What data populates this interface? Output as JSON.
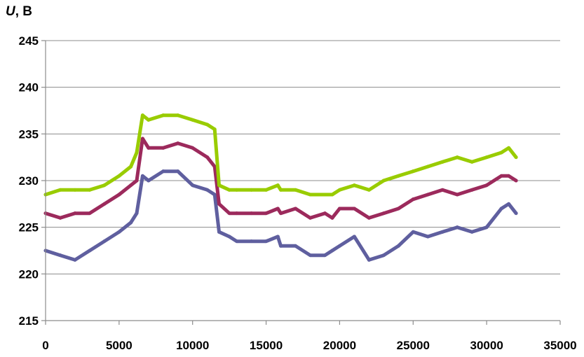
{
  "chart_data": {
    "type": "line",
    "ylabel_var": "U",
    "ylabel_unit": ", В",
    "xlim": [
      0,
      35000
    ],
    "ylim": [
      215,
      245
    ],
    "xticks": [
      0,
      5000,
      10000,
      15000,
      20000,
      25000,
      30000,
      35000
    ],
    "yticks": [
      215,
      220,
      225,
      230,
      235,
      240,
      245
    ],
    "grid": "horizontal",
    "legend": "none",
    "series": [
      {
        "color": "#5f5f9f",
        "x": [
          0,
          1000,
          2000,
          3000,
          4000,
          5000,
          5800,
          6200,
          6600,
          7000,
          8000,
          9000,
          10000,
          11000,
          11500,
          11800,
          12500,
          13000,
          14000,
          15000,
          15800,
          16000,
          17000,
          18000,
          19000,
          19500,
          20000,
          21000,
          22000,
          23000,
          24000,
          25000,
          26000,
          27000,
          28000,
          29000,
          30000,
          31000,
          31500,
          32000
        ],
        "values": [
          222.5,
          222.0,
          221.5,
          222.5,
          223.5,
          224.5,
          225.5,
          226.5,
          230.5,
          230.0,
          231.0,
          231.0,
          229.5,
          229.0,
          228.5,
          224.5,
          224.0,
          223.5,
          223.5,
          223.5,
          224.0,
          223.0,
          223.0,
          222.0,
          222.0,
          222.5,
          223.0,
          224.0,
          221.5,
          222.0,
          223.0,
          224.5,
          224.0,
          224.5,
          225.0,
          224.5,
          225.0,
          227.0,
          227.5,
          226.5
        ]
      },
      {
        "color": "#9c2a5c",
        "x": [
          0,
          1000,
          2000,
          3000,
          4000,
          5000,
          5800,
          6200,
          6600,
          7000,
          8000,
          9000,
          10000,
          11000,
          11500,
          11800,
          12500,
          13000,
          14000,
          15000,
          15800,
          16000,
          17000,
          18000,
          19000,
          19500,
          20000,
          21000,
          22000,
          23000,
          24000,
          25000,
          26000,
          27000,
          28000,
          29000,
          30000,
          31000,
          31500,
          32000
        ],
        "values": [
          226.5,
          226.0,
          226.5,
          226.5,
          227.5,
          228.5,
          229.5,
          230.0,
          234.5,
          233.5,
          233.5,
          234.0,
          233.5,
          232.5,
          231.5,
          227.5,
          226.5,
          226.5,
          226.5,
          226.5,
          227.0,
          226.5,
          227.0,
          226.0,
          226.5,
          226.0,
          227.0,
          227.0,
          226.0,
          226.5,
          227.0,
          228.0,
          228.5,
          229.0,
          228.5,
          229.0,
          229.5,
          230.5,
          230.5,
          230.0
        ]
      },
      {
        "color": "#99cc00",
        "x": [
          0,
          1000,
          2000,
          3000,
          4000,
          5000,
          5800,
          6200,
          6600,
          7000,
          8000,
          9000,
          10000,
          11000,
          11500,
          11800,
          12500,
          13000,
          14000,
          15000,
          15800,
          16000,
          17000,
          18000,
          19000,
          19500,
          20000,
          21000,
          22000,
          23000,
          24000,
          25000,
          26000,
          27000,
          28000,
          29000,
          30000,
          31000,
          31500,
          32000
        ],
        "values": [
          228.5,
          229.0,
          229.0,
          229.0,
          229.5,
          230.5,
          231.5,
          233.0,
          237.0,
          236.5,
          237.0,
          237.0,
          236.5,
          236.0,
          235.5,
          229.5,
          229.0,
          229.0,
          229.0,
          229.0,
          229.5,
          229.0,
          229.0,
          228.5,
          228.5,
          228.5,
          229.0,
          229.5,
          229.0,
          230.0,
          230.5,
          231.0,
          231.5,
          232.0,
          232.5,
          232.0,
          232.5,
          233.0,
          233.5,
          232.5
        ]
      }
    ]
  }
}
